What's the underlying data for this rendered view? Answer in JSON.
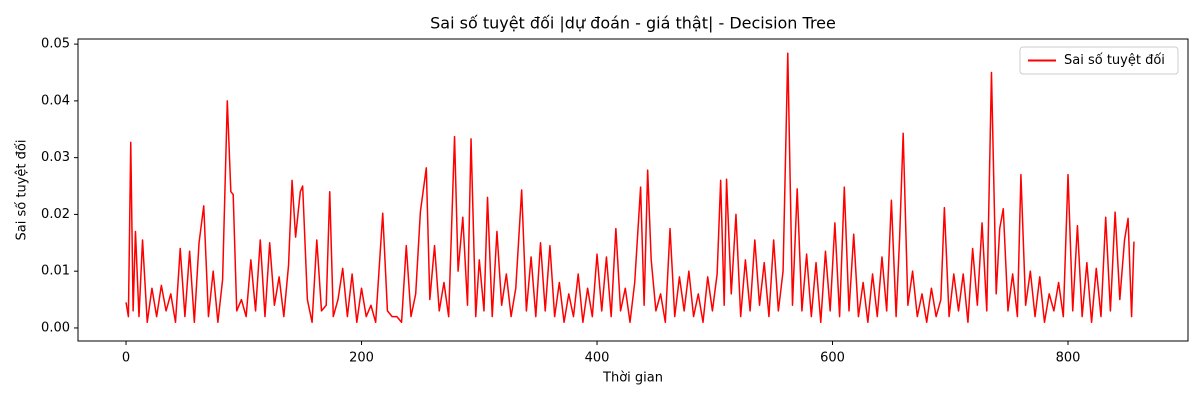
{
  "chart_data": {
    "type": "line",
    "title": "Sai số tuyệt đối |dự đoán - giá thật| - Decision Tree",
    "xlabel": "Thời gian",
    "ylabel": "Sai số tuyệt đối",
    "legend": "upper right",
    "grid": false,
    "xlim": [
      -40.8,
      901.9
    ],
    "ylim": [
      -0.0023,
      0.0509
    ],
    "xticks": [
      0,
      200,
      400,
      600,
      800
    ],
    "yticks": [
      {
        "value": 0,
        "label": "0.00"
      },
      0.01,
      0.02,
      0.03,
      0.04,
      0.05
    ],
    "x": [
      0,
      2,
      4,
      6,
      8,
      11,
      14,
      18,
      22,
      26,
      30,
      34,
      38,
      42,
      46,
      50,
      54,
      58,
      62,
      66,
      70,
      74,
      78,
      82,
      86,
      89,
      91,
      94,
      98,
      102,
      106,
      110,
      114,
      118,
      122,
      126,
      130,
      134,
      138,
      141,
      144,
      148,
      150,
      154,
      158,
      162,
      166,
      170,
      173,
      176,
      180,
      184,
      188,
      192,
      196,
      200,
      204,
      208,
      212,
      218,
      222,
      226,
      230,
      234,
      238,
      242,
      246,
      250,
      255,
      258,
      262,
      266,
      270,
      274,
      279,
      282,
      286,
      290,
      293,
      297,
      300,
      304,
      307,
      311,
      315,
      319,
      323,
      327,
      331,
      336,
      340,
      344,
      348,
      352,
      356,
      360,
      364,
      368,
      372,
      376,
      380,
      384,
      388,
      392,
      396,
      400,
      404,
      408,
      412,
      416,
      420,
      424,
      428,
      432,
      437,
      440,
      443,
      446,
      450,
      454,
      458,
      462,
      466,
      470,
      474,
      478,
      482,
      486,
      490,
      494,
      498,
      502,
      505,
      508,
      510,
      514,
      518,
      522,
      526,
      530,
      534,
      538,
      542,
      546,
      550,
      554,
      558,
      562,
      566,
      570,
      574,
      578,
      582,
      586,
      590,
      594,
      598,
      602,
      606,
      610,
      614,
      618,
      622,
      626,
      630,
      634,
      638,
      642,
      646,
      650,
      654,
      657,
      660,
      664,
      668,
      672,
      676,
      680,
      684,
      688,
      692,
      695,
      699,
      703,
      707,
      711,
      715,
      719,
      723,
      727,
      731,
      735,
      739,
      742,
      745,
      749,
      753,
      757,
      760,
      764,
      768,
      772,
      776,
      780,
      784,
      788,
      792,
      796,
      800,
      804,
      808,
      812,
      816,
      820,
      824,
      828,
      832,
      836,
      840,
      844,
      848,
      851,
      854,
      856
    ],
    "series": [
      {
        "name": "Sai số tuyệt đối",
        "color": "#ff0000",
        "values": [
          0.0045,
          0.002,
          0.0327,
          0.003,
          0.017,
          0.002,
          0.0155,
          0.001,
          0.007,
          0.002,
          0.0075,
          0.003,
          0.006,
          0.001,
          0.014,
          0.002,
          0.0135,
          0.001,
          0.015,
          0.0215,
          0.002,
          0.01,
          0.001,
          0.0085,
          0.04,
          0.024,
          0.0235,
          0.003,
          0.005,
          0.002,
          0.012,
          0.003,
          0.0155,
          0.002,
          0.015,
          0.004,
          0.009,
          0.002,
          0.011,
          0.026,
          0.016,
          0.024,
          0.025,
          0.005,
          0.001,
          0.0155,
          0.003,
          0.004,
          0.024,
          0.002,
          0.005,
          0.0105,
          0.002,
          0.0095,
          0.001,
          0.007,
          0.002,
          0.004,
          0.001,
          0.0202,
          0.003,
          0.002,
          0.002,
          0.001,
          0.0145,
          0.002,
          0.006,
          0.0205,
          0.0282,
          0.005,
          0.0145,
          0.003,
          0.008,
          0.002,
          0.0337,
          0.01,
          0.0195,
          0.004,
          0.0333,
          0.002,
          0.012,
          0.003,
          0.023,
          0.002,
          0.017,
          0.004,
          0.0095,
          0.002,
          0.007,
          0.0243,
          0.003,
          0.0125,
          0.002,
          0.015,
          0.003,
          0.0145,
          0.002,
          0.008,
          0.001,
          0.006,
          0.002,
          0.0095,
          0.001,
          0.007,
          0.002,
          0.013,
          0.003,
          0.0125,
          0.002,
          0.0175,
          0.003,
          0.007,
          0.001,
          0.008,
          0.0248,
          0.004,
          0.0278,
          0.012,
          0.003,
          0.006,
          0.001,
          0.0175,
          0.002,
          0.009,
          0.003,
          0.01,
          0.002,
          0.006,
          0.001,
          0.009,
          0.003,
          0.0095,
          0.026,
          0.004,
          0.0262,
          0.006,
          0.02,
          0.002,
          0.012,
          0.003,
          0.0155,
          0.004,
          0.0115,
          0.002,
          0.0155,
          0.003,
          0.01,
          0.0484,
          0.004,
          0.0245,
          0.003,
          0.013,
          0.002,
          0.0115,
          0.001,
          0.0135,
          0.003,
          0.0185,
          0.002,
          0.0248,
          0.003,
          0.0165,
          0.002,
          0.008,
          0.001,
          0.0095,
          0.002,
          0.0125,
          0.003,
          0.0225,
          0.002,
          0.016,
          0.0343,
          0.004,
          0.01,
          0.002,
          0.006,
          0.001,
          0.007,
          0.002,
          0.005,
          0.0212,
          0.002,
          0.0095,
          0.003,
          0.0095,
          0.001,
          0.014,
          0.004,
          0.0185,
          0.003,
          0.045,
          0.006,
          0.0175,
          0.021,
          0.003,
          0.0095,
          0.002,
          0.027,
          0.004,
          0.01,
          0.002,
          0.009,
          0.001,
          0.006,
          0.003,
          0.008,
          0.002,
          0.027,
          0.003,
          0.018,
          0.002,
          0.0115,
          0.001,
          0.0105,
          0.002,
          0.0195,
          0.003,
          0.0204,
          0.005,
          0.0155,
          0.0193,
          0.002,
          0.0152
        ]
      }
    ]
  }
}
